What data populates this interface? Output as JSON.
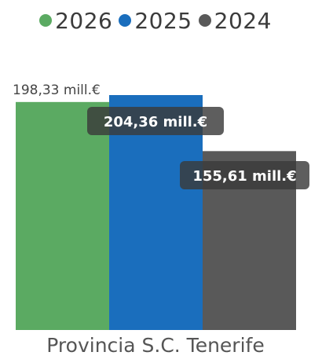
{
  "chart_data": {
    "type": "bar",
    "categories": [
      "Provincia S.C. Tenerife"
    ],
    "series": [
      {
        "name": "2026",
        "values": [
          198.33
        ],
        "label": "198,33 mill.€",
        "color": "#5BAA62"
      },
      {
        "name": "2025",
        "values": [
          204.36
        ],
        "label": "204,36 mill.€",
        "color": "#1A6EBD"
      },
      {
        "name": "2024",
        "values": [
          155.61
        ],
        "label": "155,61 mill.€",
        "color": "#595959"
      }
    ],
    "ylim": [
      0,
      204.36
    ],
    "grid": false,
    "legend_position": "top",
    "title": "",
    "xlabel": "",
    "ylabel": ""
  }
}
